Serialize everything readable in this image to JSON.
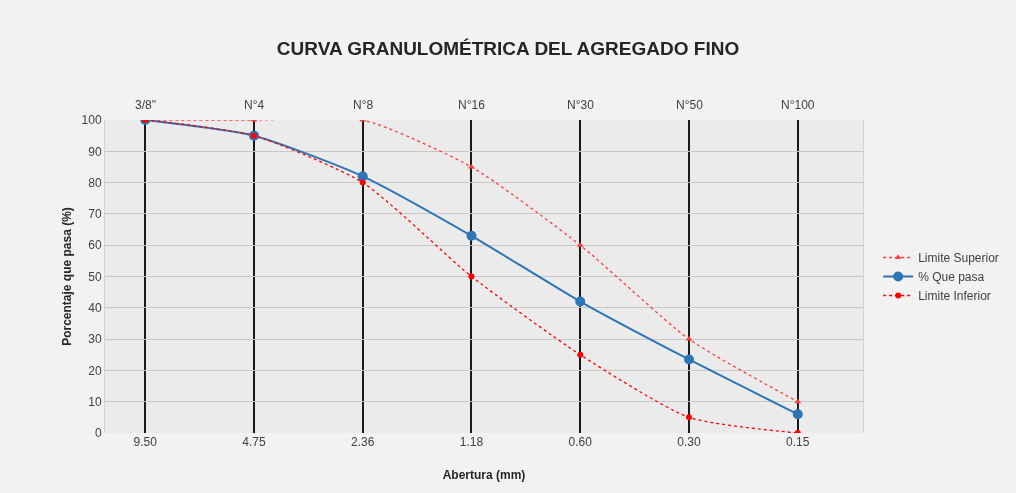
{
  "chart_data": {
    "type": "line",
    "title": "CURVA GRANULOMÉTRICA DEL AGREGADO FINO",
    "xlabel": "Abertura (mm)",
    "ylabel": "Porcentaje que pasa (%)",
    "categories": [
      "9.50",
      "4.75",
      "2.36",
      "1.18",
      "0.60",
      "0.30",
      "0.15"
    ],
    "annotations": [
      "3/8\"",
      "N°4",
      "N°8",
      "N°16",
      "N°30",
      "N°50",
      "N°100"
    ],
    "ylim": [
      0,
      100
    ],
    "yticks": [
      0,
      10,
      20,
      30,
      40,
      50,
      60,
      70,
      80,
      90,
      100
    ],
    "grid": true,
    "legend": "right",
    "series": [
      {
        "name": "Limite Superior",
        "color": "#ff3c3c",
        "line_style": "dotted",
        "marker": "triangle",
        "values": [
          100,
          100,
          100,
          85,
          60,
          30,
          10
        ]
      },
      {
        "name": "% Que pasa",
        "color": "#2e75b6",
        "line_style": "solid",
        "marker": "circle",
        "values": [
          100,
          95,
          82,
          63,
          42,
          23.5,
          6
        ]
      },
      {
        "name": "Limite Inferior",
        "color": "#ff0000",
        "line_style": "dotted",
        "marker": "circle",
        "values": [
          100,
          95,
          80,
          50,
          25,
          5,
          0
        ]
      }
    ]
  }
}
